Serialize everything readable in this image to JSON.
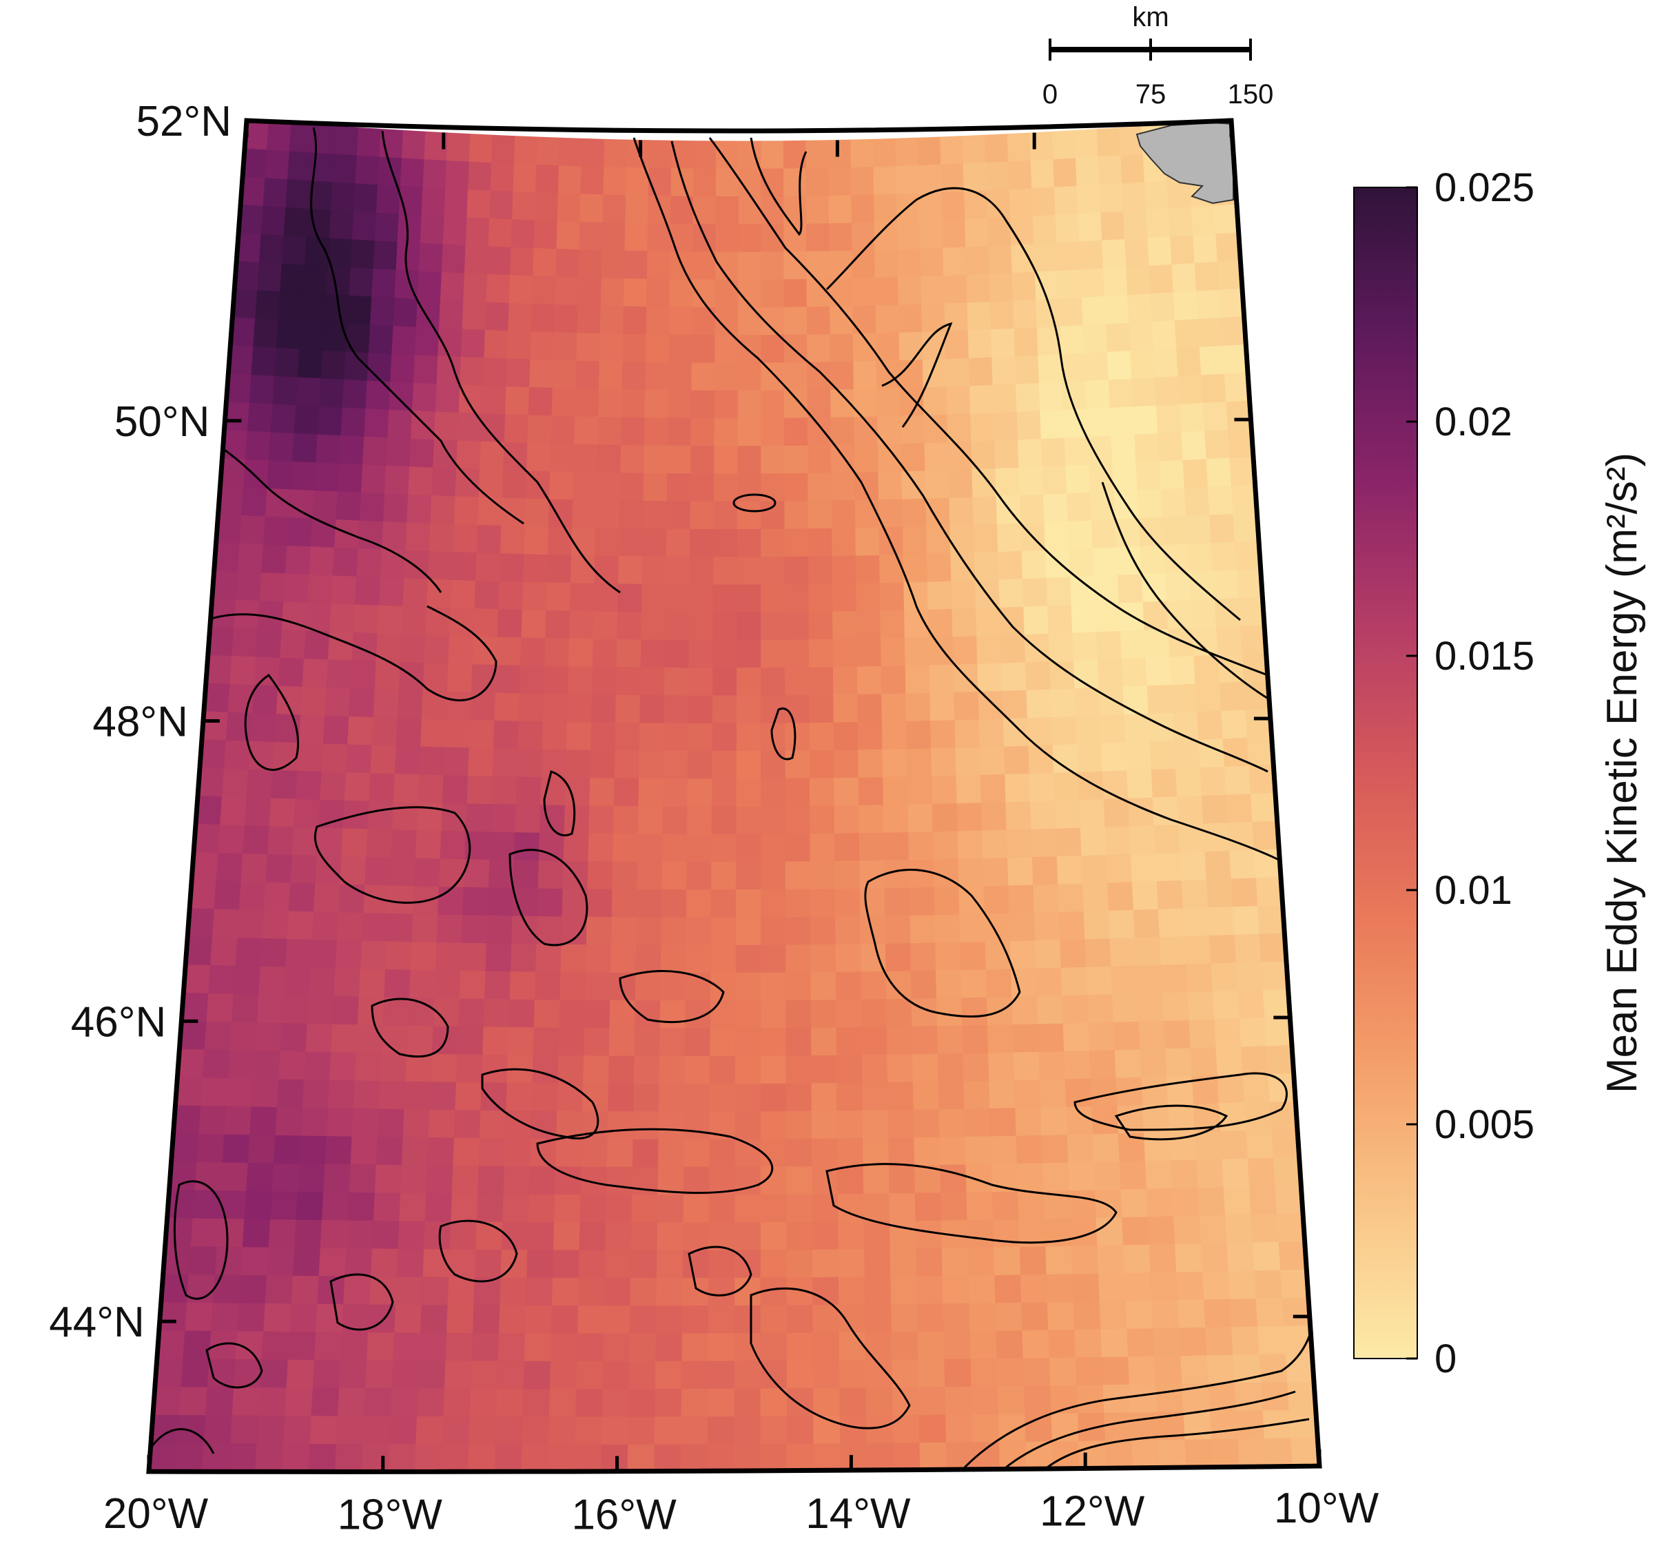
{
  "map": {
    "extent": {
      "lon_min": -20,
      "lon_max": -10,
      "lat_min": 43,
      "lat_max": 52
    },
    "lat_ticks": [
      {
        "value": 52,
        "label": "52°N"
      },
      {
        "value": 50,
        "label": "50°N"
      },
      {
        "value": 48,
        "label": "48°N"
      },
      {
        "value": 46,
        "label": "46°N"
      },
      {
        "value": 44,
        "label": "44°N"
      }
    ],
    "lon_ticks": [
      {
        "value": -20,
        "label": "20°W"
      },
      {
        "value": -18,
        "label": "18°W"
      },
      {
        "value": -16,
        "label": "16°W"
      },
      {
        "value": -14,
        "label": "14°W"
      },
      {
        "value": -12,
        "label": "12°W"
      },
      {
        "value": -10,
        "label": "10°W"
      }
    ],
    "land_color": "#b5b5b5",
    "contour_color": "#000000"
  },
  "scale_bar": {
    "unit": "km",
    "ticks": [
      "0",
      "75",
      "150"
    ]
  },
  "colorbar": {
    "title": "Mean Eddy Kinetic Energy (m²/s²)",
    "min": 0,
    "max": 0.025,
    "ticks": [
      {
        "value": 0.025,
        "label": "0.025"
      },
      {
        "value": 0.02,
        "label": "0.02"
      },
      {
        "value": 0.015,
        "label": "0.015"
      },
      {
        "value": 0.01,
        "label": "0.01"
      },
      {
        "value": 0.005,
        "label": "0.005"
      },
      {
        "value": 0,
        "label": "0"
      }
    ],
    "colormap": [
      "#fdeaa8",
      "#f9c688",
      "#f4a06a",
      "#e97a5a",
      "#d65a5a",
      "#b53d66",
      "#8a2468",
      "#5e1a5c",
      "#2f1339"
    ]
  }
}
